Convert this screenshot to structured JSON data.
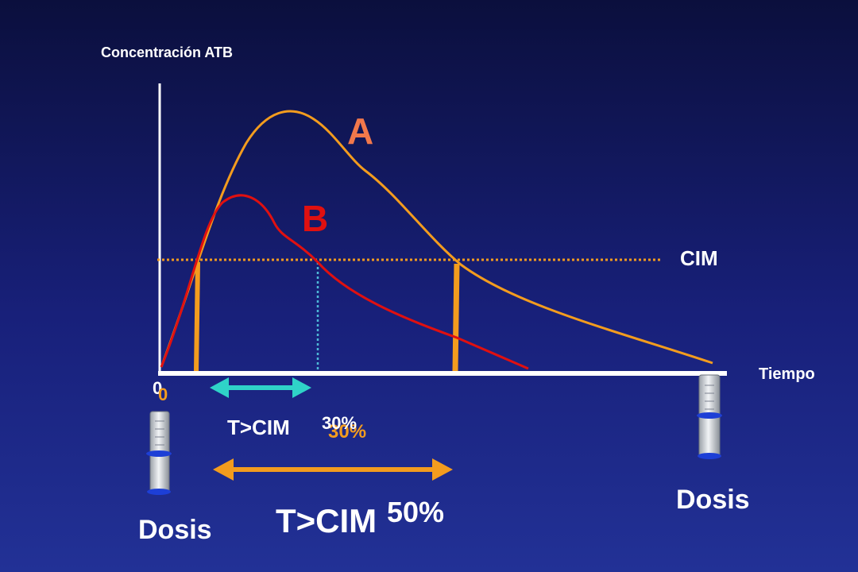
{
  "chart_data": {
    "type": "line",
    "ylabel": "Concentración ATB",
    "xlabel": "Tiempo",
    "origin_label": "0",
    "origin_label_overlay": "0",
    "mic_label": "CIM",
    "series": [
      {
        "name": "A",
        "color": "#f39c1e"
      },
      {
        "name": "B",
        "color": "#e01010"
      }
    ],
    "annotations": {
      "tmic_b_label": "T>CIM",
      "tmic_b_value": "30%",
      "tmic_b_value_overlay": "30%",
      "tmic_a_label": "T>CIM",
      "tmic_a_value": "50%",
      "dose_left": "Dosis",
      "dose_right": "Dosis"
    },
    "colors": {
      "curve_a": "#f39c1e",
      "curve_b": "#e01010",
      "mic_line": "#f39c1e",
      "arrow_b": "#2fd3c8",
      "arrow_a": "#f39c1e",
      "label_a": "#f2784b",
      "label_b": "#e01010",
      "axis": "#ffffff"
    }
  }
}
